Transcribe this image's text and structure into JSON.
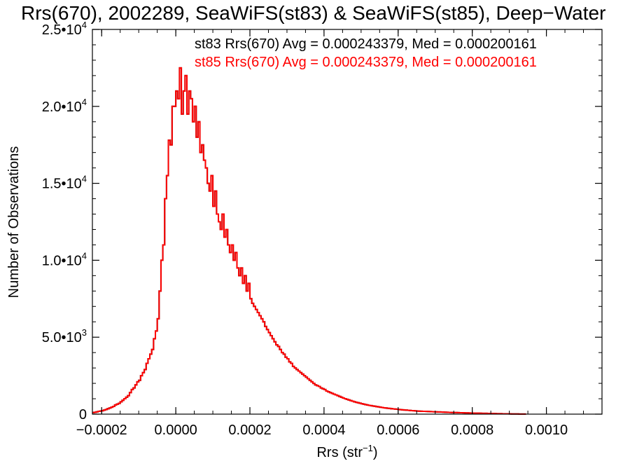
{
  "chart_data": {
    "type": "histogram",
    "title": "Rrs(670), 2002289, SeaWiFS(st83) & SeaWiFS(st85), Deep−Water",
    "xlabel": "Rrs (str",
    "xlabel_sup": "−1",
    "xlabel_suffix": ")",
    "ylabel": "Number of Observations",
    "xlim": [
      -0.000225,
      0.00115
    ],
    "ylim": [
      0,
      25000
    ],
    "x_ticks": [
      {
        "value": -0.0002,
        "label": "−0.0002"
      },
      {
        "value": 0.0,
        "label": "0.0000"
      },
      {
        "value": 0.0002,
        "label": "0.0002"
      },
      {
        "value": 0.0004,
        "label": "0.0004"
      },
      {
        "value": 0.0006,
        "label": "0.0006"
      },
      {
        "value": 0.0008,
        "label": "0.0008"
      },
      {
        "value": 0.001,
        "label": "0.0010"
      }
    ],
    "y_ticks": [
      {
        "value": 0,
        "base": "0",
        "exp": ""
      },
      {
        "value": 5000,
        "base": "5.0•10",
        "exp": "3"
      },
      {
        "value": 10000,
        "base": "1.0•10",
        "exp": "4"
      },
      {
        "value": 15000,
        "base": "1.5•10",
        "exp": "4"
      },
      {
        "value": 20000,
        "base": "2.0•10",
        "exp": "4"
      },
      {
        "value": 25000,
        "base": "2.5•10",
        "exp": "4"
      }
    ],
    "legend": [
      {
        "text": "st83 Rrs(670) Avg = 0.000243379, Med = 0.000200161",
        "color": "#000000"
      },
      {
        "text": "st85 Rrs(670) Avg = 0.000243379, Med = 0.000200161",
        "color": "#ff0000"
      }
    ],
    "series": [
      {
        "name": "st83",
        "color": "#000000",
        "bin_start": -0.000225,
        "bin_width": 5e-06,
        "values": [
          100,
          120,
          150,
          180,
          200,
          220,
          260,
          300,
          350,
          400,
          450,
          500,
          600,
          650,
          700,
          800,
          900,
          1000,
          1100,
          1200,
          1400,
          1600,
          1700,
          1900,
          2100,
          2200,
          2500,
          2700,
          2900,
          3300,
          3600,
          3900,
          4200,
          4900,
          5400,
          6200,
          8000,
          10000,
          11000,
          14000,
          15500,
          17800,
          17500,
          20000,
          20000,
          21000,
          20500,
          22500,
          19500,
          21000,
          22000,
          19500,
          21000,
          20500,
          19000,
          20000,
          18000,
          19000,
          17000,
          17500,
          16500,
          16000,
          15000,
          14500,
          15500,
          13500,
          14500,
          13000,
          12500,
          12000,
          13000,
          11500,
          12000,
          11000,
          10500,
          11000,
          10000,
          10500,
          9500,
          9000,
          9500,
          8500,
          9000,
          8000,
          8500,
          7500,
          7200,
          7000,
          6800,
          6600,
          6400,
          6200,
          6000,
          5700,
          5500,
          5300,
          5100,
          4900,
          4700,
          4500,
          4400,
          4200,
          4000,
          3900,
          3700,
          3600,
          3400,
          3300,
          3100,
          3000,
          2900,
          2800,
          2700,
          2600,
          2500,
          2400,
          2300,
          2200,
          2100,
          2000,
          1900,
          1850,
          1800,
          1700,
          1650,
          1600,
          1500,
          1450,
          1400,
          1350,
          1300,
          1250,
          1200,
          1150,
          1100,
          1050,
          1000,
          960,
          920,
          880,
          840,
          800,
          770,
          740,
          710,
          680,
          650,
          620,
          600,
          570,
          550,
          530,
          510,
          490,
          470,
          450,
          430,
          410,
          400,
          380,
          370,
          350,
          340,
          330,
          320,
          300,
          290,
          280,
          270,
          260,
          250,
          240,
          230,
          220,
          210,
          200,
          195,
          190,
          185,
          180,
          175,
          170,
          165,
          160,
          155,
          150,
          145,
          140,
          135,
          130,
          125,
          120,
          115,
          110,
          105,
          100,
          100,
          95,
          90,
          90,
          85,
          80,
          80,
          75,
          70,
          70,
          65,
          60,
          60,
          55,
          50,
          50,
          50,
          45,
          40,
          40,
          40,
          35,
          30,
          30,
          30,
          25,
          20,
          20,
          20,
          15,
          10,
          10,
          10,
          10,
          5,
          5,
          5,
          5
        ]
      },
      {
        "name": "st85",
        "color": "#ff0000",
        "bin_start": -0.000225,
        "bin_width": 5e-06,
        "values": [
          100,
          120,
          150,
          180,
          200,
          220,
          260,
          300,
          350,
          400,
          450,
          500,
          600,
          650,
          700,
          800,
          900,
          1000,
          1100,
          1200,
          1400,
          1600,
          1700,
          1900,
          2100,
          2200,
          2500,
          2700,
          2900,
          3300,
          3600,
          3900,
          4200,
          4900,
          5400,
          6200,
          8000,
          10000,
          11000,
          14000,
          15500,
          17800,
          17500,
          20000,
          20000,
          21000,
          20500,
          22500,
          19500,
          21000,
          22000,
          19500,
          21000,
          20500,
          19000,
          20000,
          18000,
          19000,
          17000,
          17500,
          16500,
          16000,
          15000,
          14500,
          15500,
          13500,
          14500,
          13000,
          12500,
          12000,
          13000,
          11500,
          12000,
          11000,
          10500,
          11000,
          10000,
          10500,
          9500,
          9000,
          9500,
          8500,
          9000,
          8000,
          8500,
          7500,
          7200,
          7000,
          6800,
          6600,
          6400,
          6200,
          6000,
          5700,
          5500,
          5300,
          5100,
          4900,
          4700,
          4500,
          4400,
          4200,
          4000,
          3900,
          3700,
          3600,
          3400,
          3300,
          3100,
          3000,
          2900,
          2800,
          2700,
          2600,
          2500,
          2400,
          2300,
          2200,
          2100,
          2000,
          1900,
          1850,
          1800,
          1700,
          1650,
          1600,
          1500,
          1450,
          1400,
          1350,
          1300,
          1250,
          1200,
          1150,
          1100,
          1050,
          1000,
          960,
          920,
          880,
          840,
          800,
          770,
          740,
          710,
          680,
          650,
          620,
          600,
          570,
          550,
          530,
          510,
          490,
          470,
          450,
          430,
          410,
          400,
          380,
          370,
          350,
          340,
          330,
          320,
          300,
          290,
          280,
          270,
          260,
          250,
          240,
          230,
          220,
          210,
          200,
          195,
          190,
          185,
          180,
          175,
          170,
          165,
          160,
          155,
          150,
          145,
          140,
          135,
          130,
          125,
          120,
          115,
          110,
          105,
          100,
          100,
          95,
          90,
          90,
          85,
          80,
          80,
          75,
          70,
          70,
          65,
          60,
          60,
          55,
          50,
          50,
          50,
          45,
          40,
          40,
          40,
          35,
          30,
          30,
          30,
          25,
          20,
          20,
          20,
          15,
          10,
          10,
          10,
          10,
          5,
          5,
          5,
          5
        ]
      }
    ]
  }
}
